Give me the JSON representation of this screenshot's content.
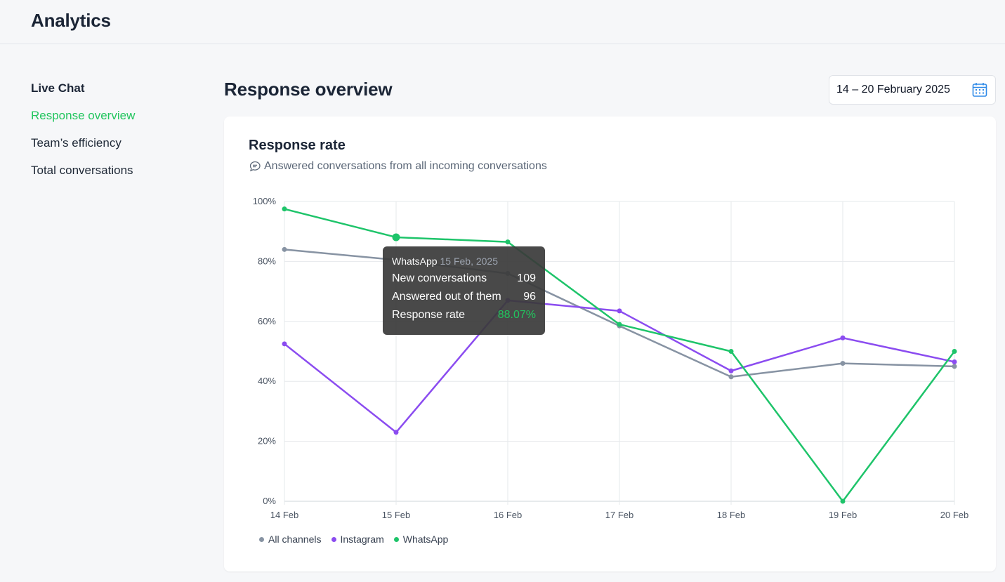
{
  "header": {
    "title": "Analytics"
  },
  "sidebar": {
    "heading": "Live Chat",
    "items": [
      {
        "label": "Response overview",
        "active": true
      },
      {
        "label": "Team’s efficiency",
        "active": false
      },
      {
        "label": "Total conversations",
        "active": false
      }
    ]
  },
  "main": {
    "title": "Response overview",
    "date_range": "14 – 20 February 2025"
  },
  "card": {
    "title": "Response rate",
    "subtitle": "Answered conversations from all incoming conversations"
  },
  "tooltip": {
    "channel": "WhatsApp",
    "date": "15 Feb, 2025",
    "rows": [
      {
        "label": "New conversations",
        "value": "109"
      },
      {
        "label": "Answered out of them",
        "value": "96"
      },
      {
        "label": "Response rate",
        "value": "88.07%"
      }
    ]
  },
  "colors": {
    "accent": "#22c55e",
    "all_channels": "#8793a3",
    "instagram": "#8b4cf0",
    "whatsapp": "#1ec46a"
  },
  "chart_data": {
    "type": "line",
    "title": "Response rate",
    "categories": [
      "14 Feb",
      "15 Feb",
      "16 Feb",
      "17 Feb",
      "18 Feb",
      "19 Feb",
      "20 Feb"
    ],
    "y_ticks": [
      "0%",
      "20%",
      "40%",
      "60%",
      "80%",
      "100%"
    ],
    "ylim": [
      0,
      100
    ],
    "grid": true,
    "legend_position": "bottom-left",
    "series": [
      {
        "name": "All channels",
        "color": "#8793a3",
        "values": [
          84,
          80.5,
          76,
          58.5,
          41.5,
          46,
          45
        ]
      },
      {
        "name": "Instagram",
        "color": "#8b4cf0",
        "values": [
          52.5,
          23,
          67,
          63.5,
          43.5,
          54.5,
          46.5
        ]
      },
      {
        "name": "WhatsApp",
        "color": "#1ec46a",
        "values": [
          97.5,
          88.07,
          86.5,
          59,
          50,
          0,
          50
        ]
      }
    ],
    "highlight": {
      "series": "WhatsApp",
      "category": "15 Feb"
    }
  }
}
